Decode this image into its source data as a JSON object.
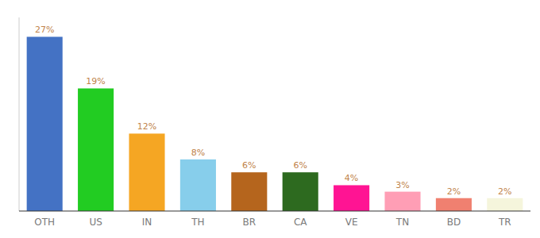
{
  "chart_data": {
    "type": "bar",
    "categories": [
      "OTH",
      "US",
      "IN",
      "TH",
      "BR",
      "CA",
      "VE",
      "TN",
      "BD",
      "TR"
    ],
    "values": [
      27,
      19,
      12,
      8,
      6,
      6,
      4,
      3,
      2,
      2
    ],
    "value_labels": [
      "27%",
      "19%",
      "12%",
      "8%",
      "6%",
      "6%",
      "4%",
      "3%",
      "2%",
      "2%"
    ],
    "colors": [
      "#4472c4",
      "#22cc22",
      "#f5a623",
      "#87ceeb",
      "#b5651d",
      "#2d6a1f",
      "#ff1493",
      "#ff9eb5",
      "#f08070",
      "#f5f5dc"
    ],
    "ylim": [
      0,
      30
    ],
    "data_labels": true,
    "grid": false,
    "tick_labels": "x"
  }
}
